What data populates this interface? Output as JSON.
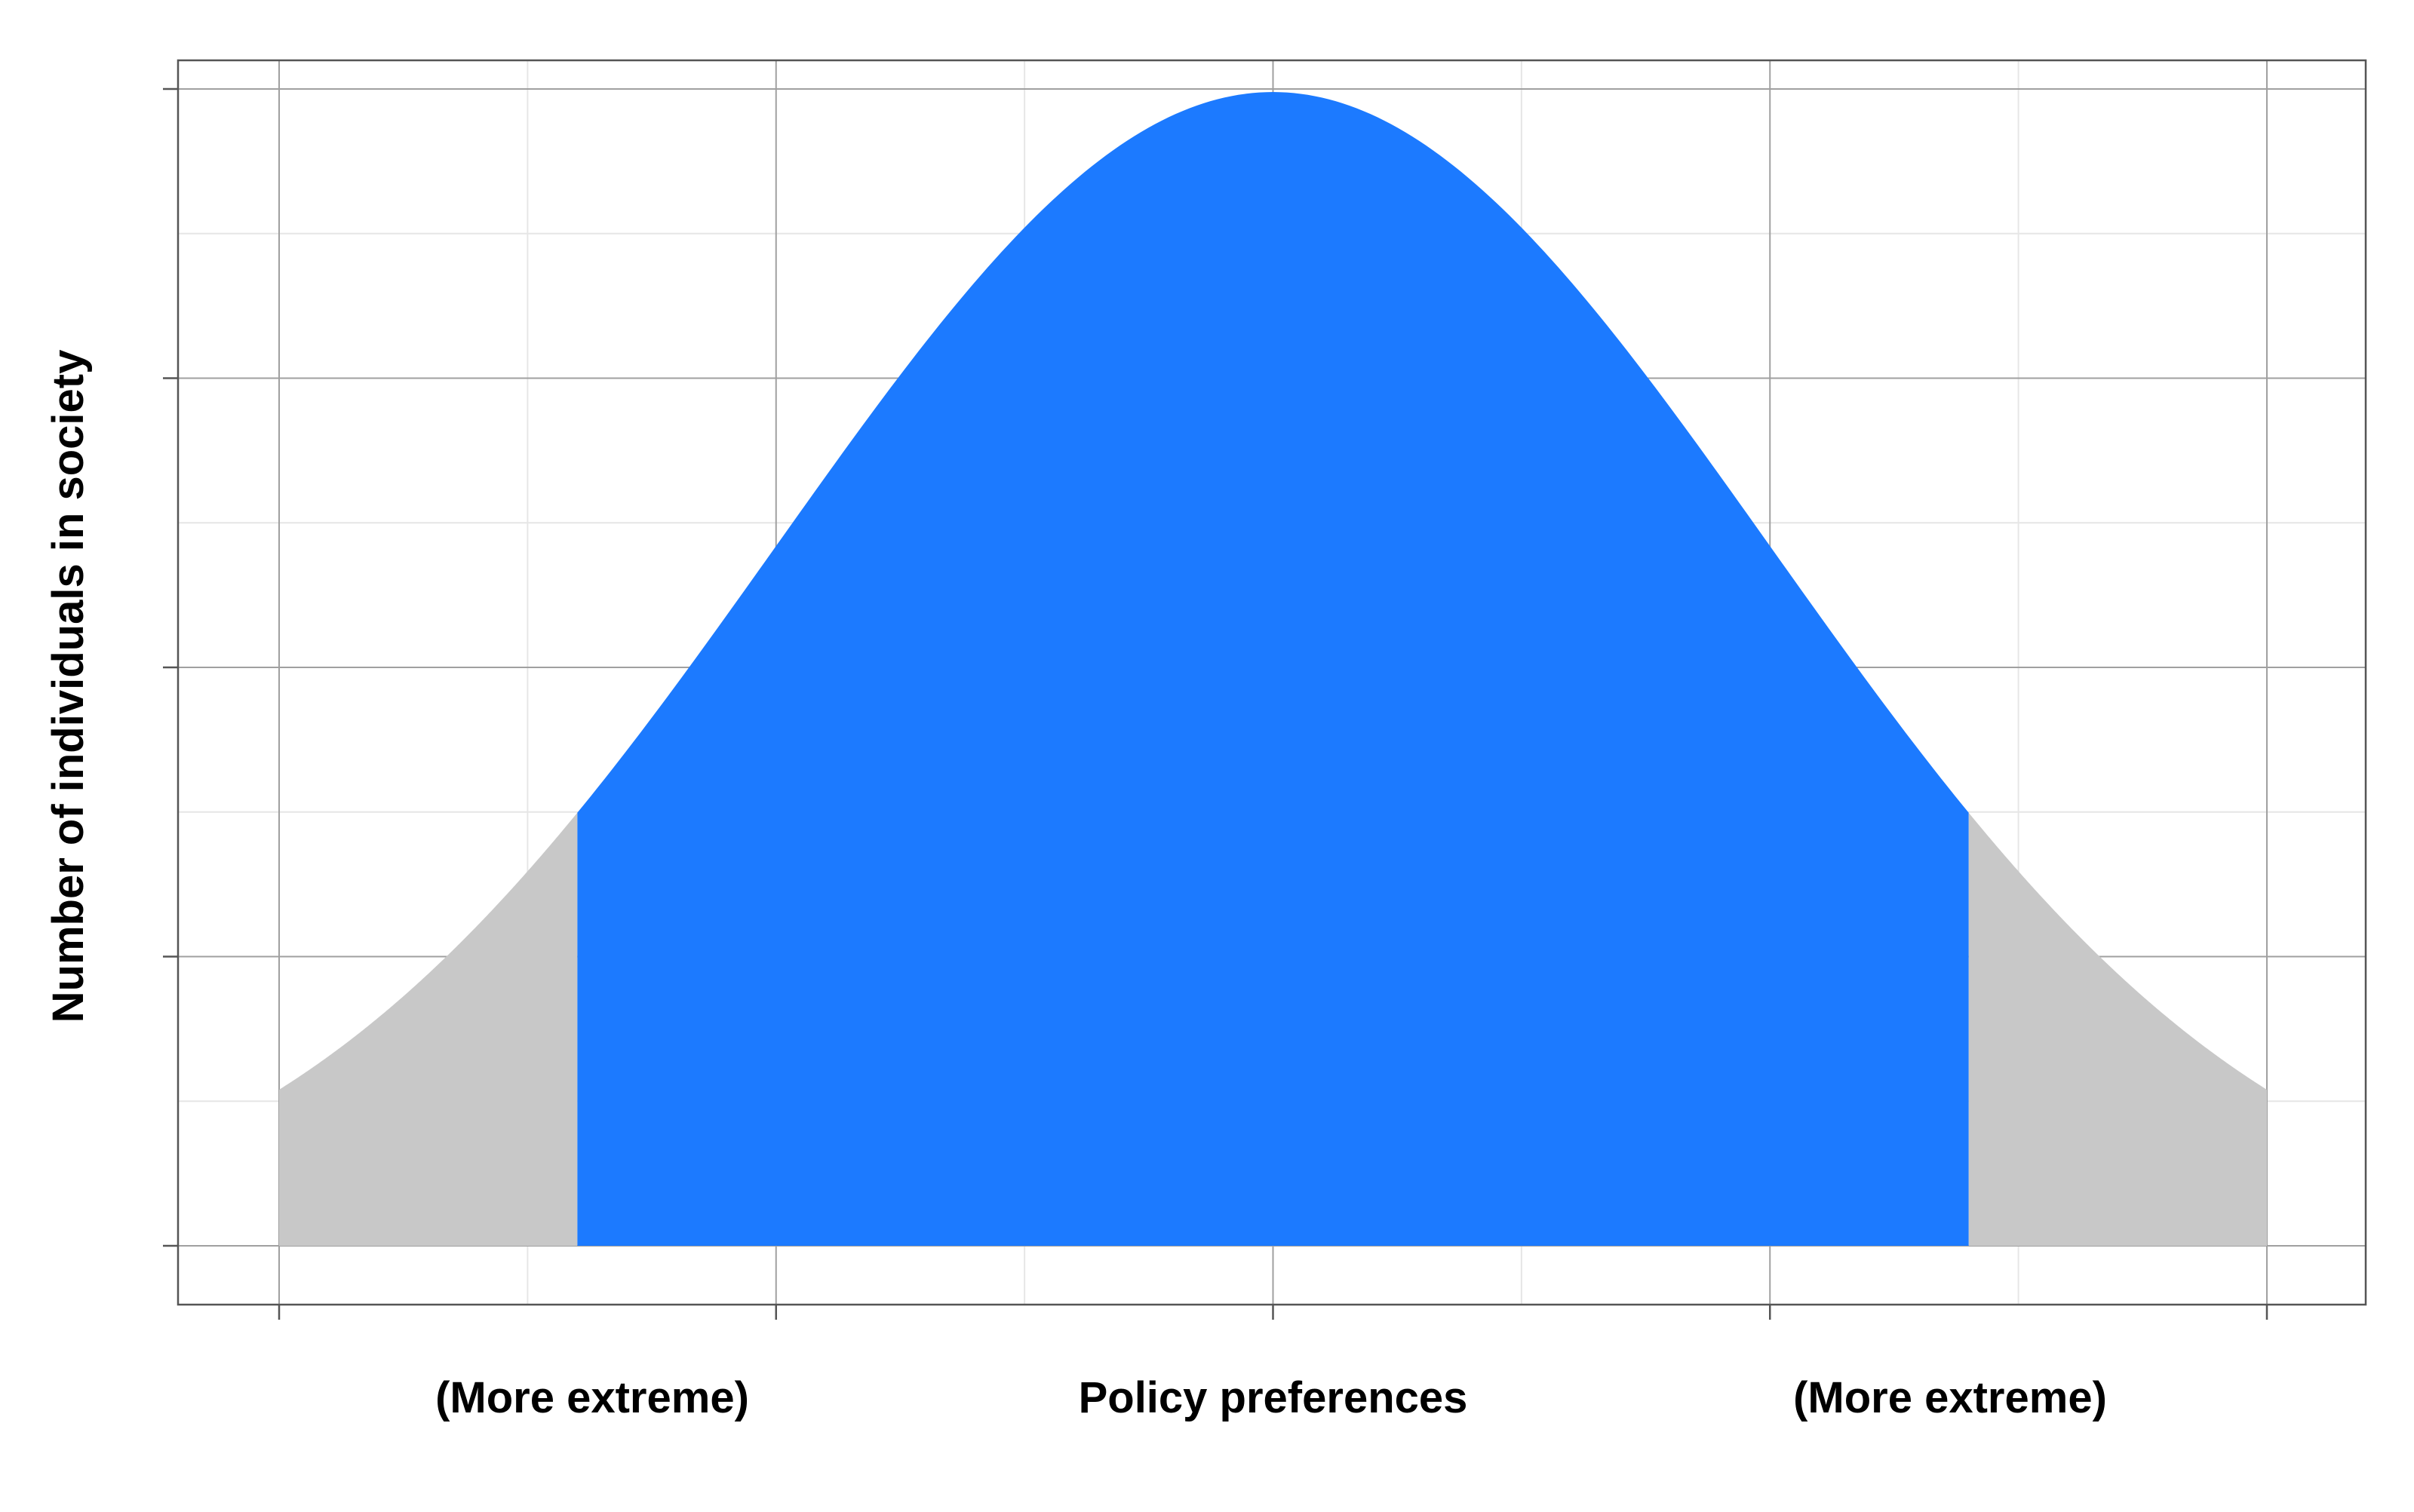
{
  "chart_data": {
    "type": "area",
    "title": "",
    "xlabel": "Policy preferences",
    "ylabel": "Number of individuals in society",
    "x_annotations": {
      "left": "(More extreme)",
      "center": "Policy preferences",
      "right": "(More extreme)"
    },
    "distribution": "normal",
    "mean": 0,
    "sd": 1,
    "xlim": [
      -2,
      2
    ],
    "ylim": [
      0,
      0.4
    ],
    "center_region": [
      -1.4,
      1.4
    ],
    "grid": true,
    "series": [
      {
        "region": "center",
        "x_range": [
          -1.4,
          1.4
        ],
        "color": "#1c7aff"
      },
      {
        "region": "left-tail",
        "x_range": [
          -2,
          -1.4
        ],
        "color": "#c8c8c8"
      },
      {
        "region": "right-tail",
        "x_range": [
          1.4,
          2
        ],
        "color": "#c8c8c8"
      }
    ]
  },
  "colors": {
    "center_fill": "#1c7aff",
    "tail_fill": "#c8c8c8",
    "grid_major": "#a0a0a0",
    "grid_minor": "#e6e6e6",
    "text": "#000000"
  }
}
